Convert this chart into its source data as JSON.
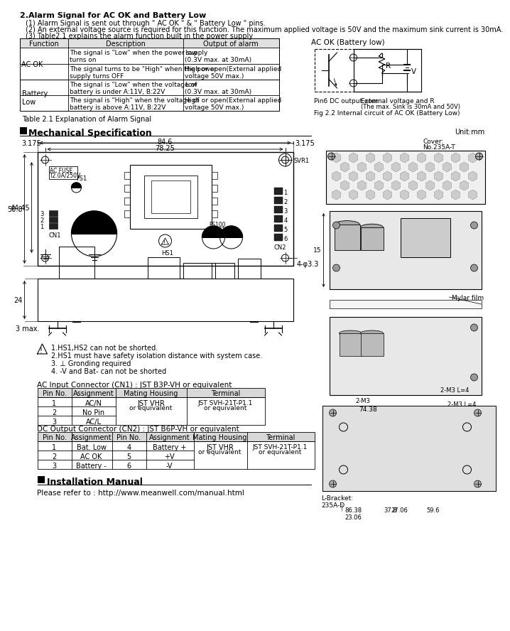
{
  "bg_color": "#ffffff",
  "alarm_title": "2.Alarm Signal for AC OK and Battery Low",
  "bullet1": "(1) Alarm Signal is sent out through \" AC OK \" & \" Battery Low \" pins.",
  "bullet2": "(2) An external voltage source is required for this function. The maximum applied voltage is 50V and the maximum sink current is 30mA.",
  "bullet3": "(3) Table2.1 explains the alarm function built in the power supply",
  "table_headers": [
    "Function",
    "Description",
    "Output of alarm"
  ],
  "table_caption": "Table 2.1 Explanation of Alarm Signal",
  "circuit_title": "AC OK (Battery low)",
  "circuit_note1": "Pin6 DC output com",
  "circuit_note2": "External voltage and R",
  "circuit_note3": "(The max. Sink is 30mA and 50V)",
  "circuit_caption": "Fig 2.2 Internal circuit of AC OK (Battery Low)",
  "mech_title": "Mechanical Specification",
  "unit_label": "Unit:mm",
  "dim_84_6": "84.6",
  "dim_78_25": "78.25",
  "dim_3175_r": "3.175",
  "dim_3175_l": "3.175",
  "dim_50_8": "50.8",
  "dim_44_45": "44.45",
  "dim_hole": "4-φ3.3",
  "dim_24": "24",
  "dim_3max": "3 max.",
  "notes": [
    "1.HS1,HS2 can not be shorted.",
    "2.HS1 must have safety isolation distance with system case.",
    "3. ⊥ Gronding required",
    "4. -V and Bat- can not be shorted"
  ],
  "ac_title": "AC Input Connector (CN1) : JST B3P-VH or equivalent",
  "ac_headers": [
    "Pin No.",
    "Assignment",
    "Mating Housing",
    "Terminal"
  ],
  "ac_rows": [
    [
      "1",
      "AC/N",
      "JST VHR",
      "JST SVH-21T-P1.1"
    ],
    [
      "2",
      "No Pin",
      "or equivalent",
      "or equivalent"
    ],
    [
      "3",
      "AC/L",
      "",
      ""
    ]
  ],
  "dc_title": "DC Output Connector (CN2) : JST B6P-VH or equivalent",
  "dc_headers": [
    "Pin No.",
    "Assignment",
    "Pin No.",
    "Assignment",
    "Mating Housing",
    "Terminal"
  ],
  "dc_rows": [
    [
      "1",
      "Bat. Low",
      "4",
      "Battery +",
      "JST VHR",
      "JST SVH-21T-P1.1"
    ],
    [
      "2",
      "AC OK",
      "5",
      "+V",
      "or equivalent",
      "or equivalent"
    ],
    [
      "3",
      "Battery -",
      "6",
      "-V",
      "",
      ""
    ]
  ],
  "install_title": "Installation Manual",
  "install_url": "Please refer to : http://www.meanwell.com/manual.html",
  "cover_label": "Cover:\nNo.235A-T",
  "mylar_label": "Mylar film",
  "lbracket_label": "L-Bracket:\n235A-D",
  "dim_15": "15",
  "dim_74_38": "74.38",
  "dim_2m3": "2-M3",
  "dim_2m3l4_top": "2-M3 L=4",
  "dim_2m3l4_bot": "2-M3 L=4",
  "dim_86_38": "86.38",
  "dim_37_8": "37.8",
  "dim_23_06": "23.06",
  "dim_27_06": "27.06",
  "dim_59_6": "59.6"
}
